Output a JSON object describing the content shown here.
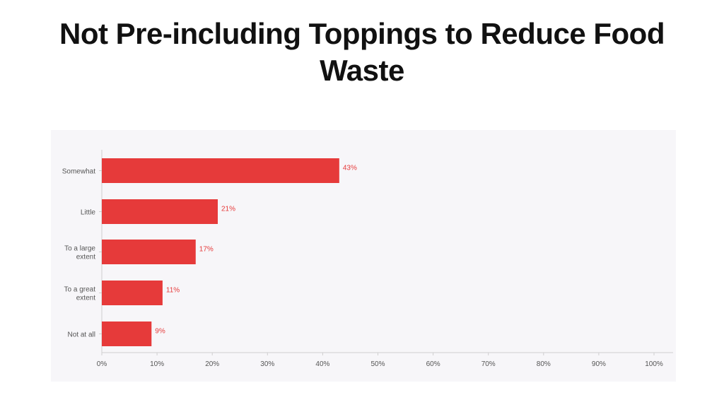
{
  "title": "Not Pre-including Toppings to Reduce Food Waste",
  "colors": {
    "bar": "#e63a3a",
    "label": "#e63a3a",
    "axis": "#cfcfcf",
    "panel": "#f7f6f9"
  },
  "chart_data": {
    "type": "bar",
    "orientation": "horizontal",
    "categories": [
      [
        "Somewhat"
      ],
      [
        "Little"
      ],
      [
        "To a large",
        "extent"
      ],
      [
        "To a great",
        "extent"
      ],
      [
        "Not at all"
      ]
    ],
    "values": [
      43,
      21,
      17,
      11,
      9
    ],
    "value_labels": [
      "43%",
      "21%",
      "17%",
      "11%",
      "9%"
    ],
    "xlim": [
      0,
      100
    ],
    "xticks": [
      "0%",
      "10%",
      "20%",
      "30%",
      "40%",
      "50%",
      "60%",
      "70%",
      "80%",
      "90%",
      "100%"
    ],
    "xlabel": "",
    "ylabel": "",
    "grid": false,
    "legend": false
  }
}
